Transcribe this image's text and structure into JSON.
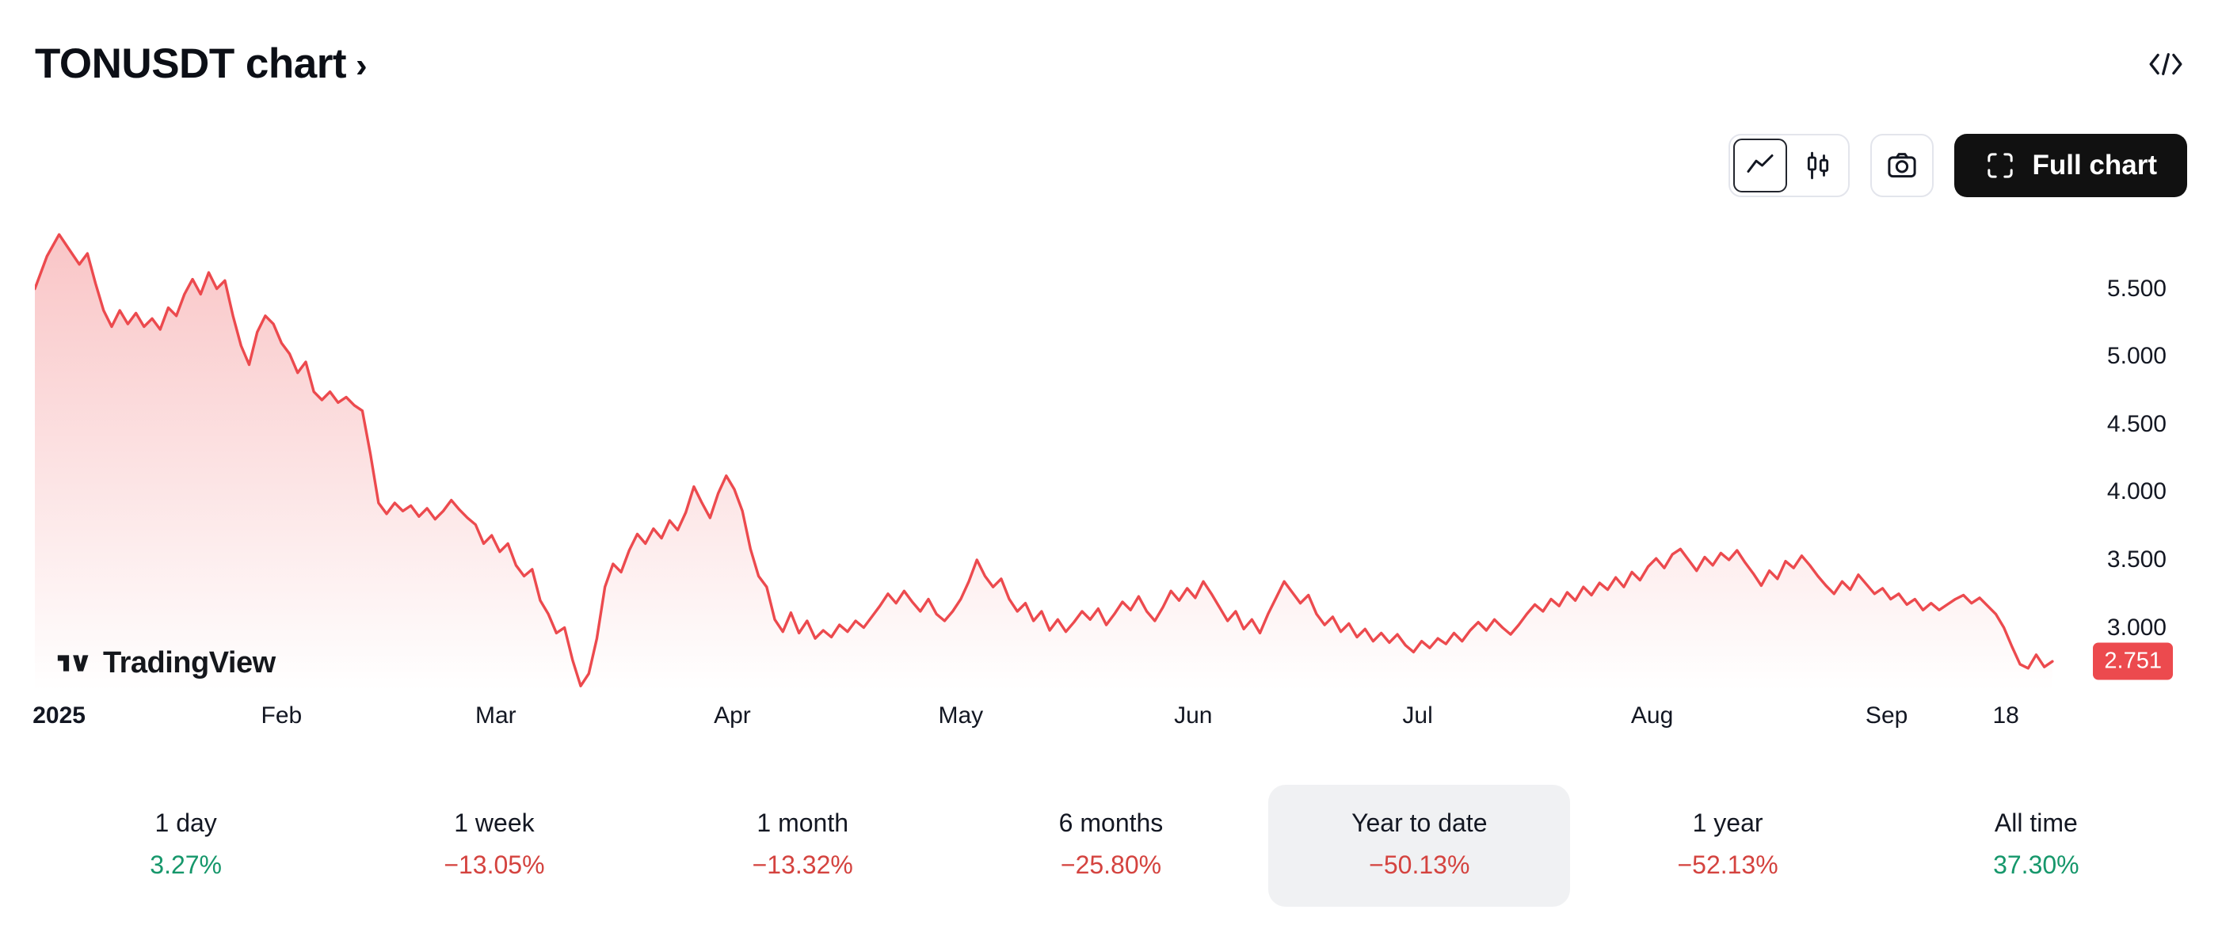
{
  "header": {
    "title": "TONUSDT chart",
    "chevron_glyph": "›"
  },
  "toolbar": {
    "full_chart_label": "Full chart",
    "icons": {
      "style_line": "line-chart-icon",
      "style_candles": "candlestick-icon",
      "screenshot": "camera-icon",
      "full_chart": "fullscreen-icon",
      "embed": "code-icon",
      "title_chevron": "chevron-right-icon"
    }
  },
  "watermark": {
    "brand": "TradingView"
  },
  "colors": {
    "text_primary": "#131722",
    "up_text": "#16976b",
    "down_text": "#d4433f",
    "badge_bg": "#ec4a4e",
    "badge_text": "#ffffff",
    "border": "#e3e5ec",
    "selected_bg": "#f0f1f3",
    "button_bg": "#111111",
    "button_text": "#ffffff"
  },
  "periods": {
    "items": [
      {
        "label": "1 day",
        "value": "3.27%",
        "direction": "up",
        "selected": false
      },
      {
        "label": "1 week",
        "value": "−13.05%",
        "direction": "down",
        "selected": false
      },
      {
        "label": "1 month",
        "value": "−13.32%",
        "direction": "down",
        "selected": false
      },
      {
        "label": "6 months",
        "value": "−25.80%",
        "direction": "down",
        "selected": false
      },
      {
        "label": "Year to date",
        "value": "−50.13%",
        "direction": "down",
        "selected": true
      },
      {
        "label": "1 year",
        "value": "−52.13%",
        "direction": "down",
        "selected": false
      },
      {
        "label": "All time",
        "value": "37.30%",
        "direction": "up",
        "selected": false
      }
    ]
  },
  "chart_data": {
    "type": "area",
    "symbol": "TONUSDT",
    "title": "TONUSDT chart",
    "line_color": "#ec4a4e",
    "fill_opacity_top": 0.32,
    "ylim": [
      2.53,
      5.93
    ],
    "last_price": 2.751,
    "last_price_label": "2.751",
    "y_ticks": [
      {
        "label": "5.500",
        "value": 5.5
      },
      {
        "label": "5.000",
        "value": 5.0
      },
      {
        "label": "4.500",
        "value": 4.5
      },
      {
        "label": "4.000",
        "value": 4.0
      },
      {
        "label": "3.500",
        "value": 3.5
      },
      {
        "label": "3.000",
        "value": 3.0
      }
    ],
    "x_ticks": [
      {
        "label": "2025",
        "pos": 0.012,
        "bold": true
      },
      {
        "label": "Feb",
        "pos": 0.122,
        "bold": false
      },
      {
        "label": "Mar",
        "pos": 0.228,
        "bold": false
      },
      {
        "label": "Apr",
        "pos": 0.345,
        "bold": false
      },
      {
        "label": "May",
        "pos": 0.458,
        "bold": false
      },
      {
        "label": "Jun",
        "pos": 0.573,
        "bold": false
      },
      {
        "label": "Jul",
        "pos": 0.684,
        "bold": false
      },
      {
        "label": "Aug",
        "pos": 0.8,
        "bold": false
      },
      {
        "label": "Sep",
        "pos": 0.916,
        "bold": false
      },
      {
        "label": "18",
        "pos": 0.975,
        "bold": false
      }
    ],
    "points": [
      [
        0.0,
        5.5
      ],
      [
        0.006,
        5.74
      ],
      [
        0.012,
        5.9
      ],
      [
        0.017,
        5.79
      ],
      [
        0.022,
        5.68
      ],
      [
        0.026,
        5.76
      ],
      [
        0.03,
        5.54
      ],
      [
        0.034,
        5.34
      ],
      [
        0.038,
        5.22
      ],
      [
        0.042,
        5.34
      ],
      [
        0.046,
        5.24
      ],
      [
        0.05,
        5.32
      ],
      [
        0.054,
        5.22
      ],
      [
        0.058,
        5.28
      ],
      [
        0.062,
        5.2
      ],
      [
        0.066,
        5.36
      ],
      [
        0.07,
        5.3
      ],
      [
        0.074,
        5.46
      ],
      [
        0.078,
        5.57
      ],
      [
        0.082,
        5.46
      ],
      [
        0.086,
        5.62
      ],
      [
        0.09,
        5.5
      ],
      [
        0.094,
        5.56
      ],
      [
        0.098,
        5.3
      ],
      [
        0.102,
        5.08
      ],
      [
        0.106,
        4.94
      ],
      [
        0.11,
        5.18
      ],
      [
        0.114,
        5.3
      ],
      [
        0.118,
        5.24
      ],
      [
        0.122,
        5.1
      ],
      [
        0.126,
        5.02
      ],
      [
        0.13,
        4.88
      ],
      [
        0.134,
        4.96
      ],
      [
        0.138,
        4.74
      ],
      [
        0.142,
        4.68
      ],
      [
        0.146,
        4.74
      ],
      [
        0.15,
        4.66
      ],
      [
        0.154,
        4.7
      ],
      [
        0.158,
        4.64
      ],
      [
        0.162,
        4.6
      ],
      [
        0.166,
        4.28
      ],
      [
        0.17,
        3.92
      ],
      [
        0.174,
        3.84
      ],
      [
        0.178,
        3.92
      ],
      [
        0.182,
        3.86
      ],
      [
        0.186,
        3.9
      ],
      [
        0.19,
        3.82
      ],
      [
        0.194,
        3.88
      ],
      [
        0.198,
        3.8
      ],
      [
        0.202,
        3.86
      ],
      [
        0.206,
        3.94
      ],
      [
        0.21,
        3.87
      ],
      [
        0.214,
        3.81
      ],
      [
        0.218,
        3.76
      ],
      [
        0.222,
        3.62
      ],
      [
        0.226,
        3.68
      ],
      [
        0.23,
        3.56
      ],
      [
        0.234,
        3.62
      ],
      [
        0.238,
        3.46
      ],
      [
        0.242,
        3.38
      ],
      [
        0.246,
        3.43
      ],
      [
        0.25,
        3.2
      ],
      [
        0.254,
        3.1
      ],
      [
        0.258,
        2.96
      ],
      [
        0.262,
        3.0
      ],
      [
        0.266,
        2.76
      ],
      [
        0.27,
        2.57
      ],
      [
        0.274,
        2.66
      ],
      [
        0.278,
        2.92
      ],
      [
        0.282,
        3.3
      ],
      [
        0.286,
        3.47
      ],
      [
        0.29,
        3.41
      ],
      [
        0.294,
        3.57
      ],
      [
        0.298,
        3.69
      ],
      [
        0.302,
        3.62
      ],
      [
        0.306,
        3.73
      ],
      [
        0.31,
        3.66
      ],
      [
        0.314,
        3.79
      ],
      [
        0.318,
        3.72
      ],
      [
        0.322,
        3.85
      ],
      [
        0.326,
        4.04
      ],
      [
        0.33,
        3.92
      ],
      [
        0.334,
        3.81
      ],
      [
        0.338,
        3.99
      ],
      [
        0.342,
        4.12
      ],
      [
        0.346,
        4.02
      ],
      [
        0.35,
        3.86
      ],
      [
        0.354,
        3.58
      ],
      [
        0.358,
        3.38
      ],
      [
        0.362,
        3.3
      ],
      [
        0.366,
        3.06
      ],
      [
        0.37,
        2.97
      ],
      [
        0.374,
        3.11
      ],
      [
        0.378,
        2.96
      ],
      [
        0.382,
        3.05
      ],
      [
        0.386,
        2.92
      ],
      [
        0.39,
        2.98
      ],
      [
        0.394,
        2.93
      ],
      [
        0.398,
        3.02
      ],
      [
        0.402,
        2.97
      ],
      [
        0.406,
        3.05
      ],
      [
        0.41,
        3.0
      ],
      [
        0.414,
        3.08
      ],
      [
        0.418,
        3.16
      ],
      [
        0.422,
        3.25
      ],
      [
        0.426,
        3.18
      ],
      [
        0.43,
        3.27
      ],
      [
        0.434,
        3.19
      ],
      [
        0.438,
        3.12
      ],
      [
        0.442,
        3.21
      ],
      [
        0.446,
        3.1
      ],
      [
        0.45,
        3.05
      ],
      [
        0.454,
        3.12
      ],
      [
        0.458,
        3.21
      ],
      [
        0.462,
        3.34
      ],
      [
        0.466,
        3.5
      ],
      [
        0.47,
        3.38
      ],
      [
        0.474,
        3.3
      ],
      [
        0.478,
        3.36
      ],
      [
        0.482,
        3.21
      ],
      [
        0.486,
        3.12
      ],
      [
        0.49,
        3.18
      ],
      [
        0.494,
        3.05
      ],
      [
        0.498,
        3.12
      ],
      [
        0.502,
        2.98
      ],
      [
        0.506,
        3.06
      ],
      [
        0.51,
        2.97
      ],
      [
        0.514,
        3.04
      ],
      [
        0.518,
        3.12
      ],
      [
        0.522,
        3.06
      ],
      [
        0.526,
        3.14
      ],
      [
        0.53,
        3.02
      ],
      [
        0.534,
        3.1
      ],
      [
        0.538,
        3.19
      ],
      [
        0.542,
        3.13
      ],
      [
        0.546,
        3.23
      ],
      [
        0.55,
        3.12
      ],
      [
        0.554,
        3.05
      ],
      [
        0.558,
        3.15
      ],
      [
        0.562,
        3.27
      ],
      [
        0.566,
        3.2
      ],
      [
        0.57,
        3.29
      ],
      [
        0.574,
        3.22
      ],
      [
        0.578,
        3.34
      ],
      [
        0.582,
        3.25
      ],
      [
        0.586,
        3.15
      ],
      [
        0.59,
        3.05
      ],
      [
        0.594,
        3.12
      ],
      [
        0.598,
        2.99
      ],
      [
        0.602,
        3.06
      ],
      [
        0.606,
        2.96
      ],
      [
        0.61,
        3.1
      ],
      [
        0.614,
        3.22
      ],
      [
        0.618,
        3.34
      ],
      [
        0.622,
        3.26
      ],
      [
        0.626,
        3.18
      ],
      [
        0.63,
        3.24
      ],
      [
        0.634,
        3.1
      ],
      [
        0.638,
        3.02
      ],
      [
        0.642,
        3.08
      ],
      [
        0.646,
        2.97
      ],
      [
        0.65,
        3.03
      ],
      [
        0.654,
        2.93
      ],
      [
        0.658,
        2.99
      ],
      [
        0.662,
        2.9
      ],
      [
        0.666,
        2.96
      ],
      [
        0.67,
        2.89
      ],
      [
        0.674,
        2.95
      ],
      [
        0.678,
        2.87
      ],
      [
        0.682,
        2.82
      ],
      [
        0.686,
        2.9
      ],
      [
        0.69,
        2.85
      ],
      [
        0.694,
        2.92
      ],
      [
        0.698,
        2.88
      ],
      [
        0.702,
        2.96
      ],
      [
        0.706,
        2.9
      ],
      [
        0.71,
        2.98
      ],
      [
        0.714,
        3.04
      ],
      [
        0.718,
        2.98
      ],
      [
        0.722,
        3.06
      ],
      [
        0.726,
        3.0
      ],
      [
        0.73,
        2.95
      ],
      [
        0.734,
        3.02
      ],
      [
        0.738,
        3.1
      ],
      [
        0.742,
        3.17
      ],
      [
        0.746,
        3.12
      ],
      [
        0.75,
        3.21
      ],
      [
        0.754,
        3.16
      ],
      [
        0.758,
        3.26
      ],
      [
        0.762,
        3.2
      ],
      [
        0.766,
        3.3
      ],
      [
        0.77,
        3.24
      ],
      [
        0.774,
        3.33
      ],
      [
        0.778,
        3.28
      ],
      [
        0.782,
        3.37
      ],
      [
        0.786,
        3.3
      ],
      [
        0.79,
        3.41
      ],
      [
        0.794,
        3.35
      ],
      [
        0.798,
        3.45
      ],
      [
        0.802,
        3.51
      ],
      [
        0.806,
        3.44
      ],
      [
        0.81,
        3.54
      ],
      [
        0.814,
        3.58
      ],
      [
        0.818,
        3.5
      ],
      [
        0.822,
        3.42
      ],
      [
        0.826,
        3.52
      ],
      [
        0.83,
        3.46
      ],
      [
        0.834,
        3.55
      ],
      [
        0.838,
        3.5
      ],
      [
        0.842,
        3.57
      ],
      [
        0.846,
        3.48
      ],
      [
        0.85,
        3.4
      ],
      [
        0.854,
        3.31
      ],
      [
        0.858,
        3.42
      ],
      [
        0.862,
        3.36
      ],
      [
        0.866,
        3.49
      ],
      [
        0.87,
        3.44
      ],
      [
        0.874,
        3.53
      ],
      [
        0.878,
        3.46
      ],
      [
        0.882,
        3.38
      ],
      [
        0.886,
        3.31
      ],
      [
        0.89,
        3.25
      ],
      [
        0.894,
        3.34
      ],
      [
        0.898,
        3.28
      ],
      [
        0.902,
        3.39
      ],
      [
        0.906,
        3.32
      ],
      [
        0.91,
        3.25
      ],
      [
        0.914,
        3.29
      ],
      [
        0.918,
        3.21
      ],
      [
        0.922,
        3.25
      ],
      [
        0.926,
        3.17
      ],
      [
        0.93,
        3.21
      ],
      [
        0.934,
        3.13
      ],
      [
        0.938,
        3.18
      ],
      [
        0.942,
        3.13
      ],
      [
        0.946,
        3.17
      ],
      [
        0.95,
        3.21
      ],
      [
        0.954,
        3.24
      ],
      [
        0.958,
        3.18
      ],
      [
        0.962,
        3.22
      ],
      [
        0.966,
        3.16
      ],
      [
        0.97,
        3.1
      ],
      [
        0.974,
        3.0
      ],
      [
        0.978,
        2.86
      ],
      [
        0.982,
        2.73
      ],
      [
        0.986,
        2.7
      ],
      [
        0.99,
        2.8
      ],
      [
        0.994,
        2.71
      ],
      [
        0.998,
        2.751
      ]
    ]
  }
}
